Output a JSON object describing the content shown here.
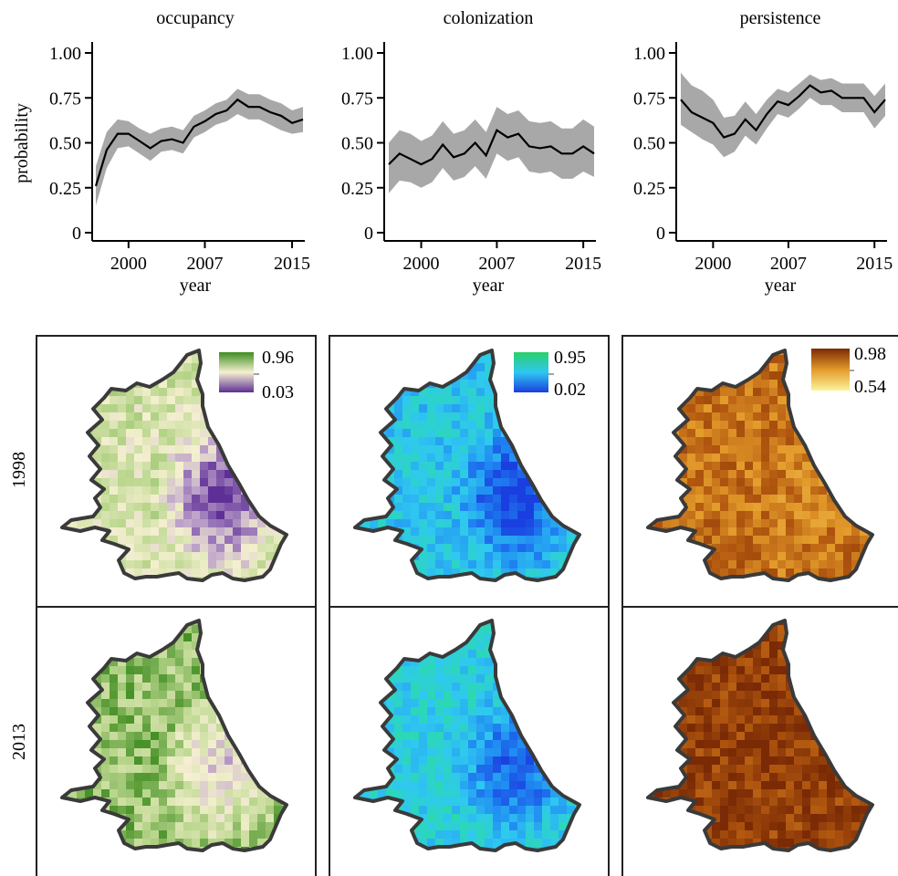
{
  "chart_data": [
    {
      "type": "line",
      "title": "occupancy",
      "xlabel": "year",
      "ylabel": "probability",
      "xlim": [
        1997,
        2016
      ],
      "ylim": [
        0,
        1
      ],
      "xticks": [
        2000,
        2007,
        2015
      ],
      "xtick_labels": [
        "2000",
        "2007",
        "2015"
      ],
      "yticks": [
        0,
        0.25,
        0.5,
        0.75,
        1.0
      ],
      "ytick_labels": [
        "0",
        "0.25",
        "0.50",
        "0.75",
        "1.00"
      ],
      "x": [
        1997,
        1998,
        1999,
        2000,
        2001,
        2002,
        2003,
        2004,
        2005,
        2006,
        2007,
        2008,
        2009,
        2010,
        2011,
        2012,
        2013,
        2014,
        2015,
        2016
      ],
      "series": [
        {
          "values": [
            0.26,
            0.46,
            0.55,
            0.55,
            0.51,
            0.47,
            0.51,
            0.52,
            0.5,
            0.59,
            0.62,
            0.66,
            0.68,
            0.74,
            0.7,
            0.7,
            0.67,
            0.65,
            0.61,
            0.63
          ],
          "lower": [
            0.15,
            0.36,
            0.47,
            0.48,
            0.44,
            0.4,
            0.45,
            0.46,
            0.44,
            0.53,
            0.56,
            0.6,
            0.62,
            0.66,
            0.63,
            0.63,
            0.6,
            0.57,
            0.55,
            0.56
          ],
          "upper": [
            0.37,
            0.56,
            0.63,
            0.62,
            0.58,
            0.55,
            0.58,
            0.59,
            0.57,
            0.65,
            0.68,
            0.72,
            0.74,
            0.8,
            0.77,
            0.77,
            0.74,
            0.72,
            0.68,
            0.7
          ]
        }
      ],
      "grid": false
    },
    {
      "type": "line",
      "title": "colonization",
      "xlabel": "year",
      "ylabel": "",
      "xlim": [
        1997,
        2016
      ],
      "ylim": [
        0,
        1
      ],
      "xticks": [
        2000,
        2007,
        2015
      ],
      "xtick_labels": [
        "2000",
        "2007",
        "2015"
      ],
      "yticks": [
        0,
        0.25,
        0.5,
        0.75,
        1.0
      ],
      "ytick_labels": [
        "0",
        "0.25",
        "0.50",
        "0.75",
        "1.00"
      ],
      "x": [
        1997,
        1998,
        1999,
        2000,
        2001,
        2002,
        2003,
        2004,
        2005,
        2006,
        2007,
        2008,
        2009,
        2010,
        2011,
        2012,
        2013,
        2014,
        2015,
        2016
      ],
      "series": [
        {
          "values": [
            0.38,
            0.44,
            0.41,
            0.38,
            0.41,
            0.49,
            0.42,
            0.44,
            0.5,
            0.43,
            0.57,
            0.53,
            0.55,
            0.48,
            0.47,
            0.48,
            0.44,
            0.44,
            0.48,
            0.44
          ],
          "lower": [
            0.22,
            0.29,
            0.28,
            0.25,
            0.28,
            0.36,
            0.29,
            0.31,
            0.37,
            0.3,
            0.44,
            0.4,
            0.42,
            0.34,
            0.33,
            0.34,
            0.3,
            0.3,
            0.34,
            0.31
          ],
          "upper": [
            0.5,
            0.57,
            0.55,
            0.51,
            0.54,
            0.62,
            0.55,
            0.57,
            0.63,
            0.56,
            0.7,
            0.66,
            0.68,
            0.62,
            0.61,
            0.62,
            0.58,
            0.58,
            0.63,
            0.59
          ]
        }
      ],
      "grid": false
    },
    {
      "type": "line",
      "title": "persistence",
      "xlabel": "year",
      "ylabel": "",
      "xlim": [
        1997,
        2016
      ],
      "ylim": [
        0,
        1
      ],
      "xticks": [
        2000,
        2007,
        2015
      ],
      "xtick_labels": [
        "2000",
        "2007",
        "2015"
      ],
      "yticks": [
        0,
        0.25,
        0.5,
        0.75,
        1.0
      ],
      "ytick_labels": [
        "0",
        "0.25",
        "0.50",
        "0.75",
        "1.00"
      ],
      "x": [
        1997,
        1998,
        1999,
        2000,
        2001,
        2002,
        2003,
        2004,
        2005,
        2006,
        2007,
        2008,
        2009,
        2010,
        2011,
        2012,
        2013,
        2014,
        2015,
        2016
      ],
      "series": [
        {
          "values": [
            0.74,
            0.67,
            0.64,
            0.61,
            0.53,
            0.55,
            0.63,
            0.57,
            0.66,
            0.73,
            0.71,
            0.76,
            0.82,
            0.78,
            0.79,
            0.75,
            0.75,
            0.75,
            0.67,
            0.74
          ],
          "lower": [
            0.6,
            0.56,
            0.52,
            0.49,
            0.42,
            0.45,
            0.54,
            0.49,
            0.58,
            0.66,
            0.64,
            0.69,
            0.75,
            0.71,
            0.71,
            0.67,
            0.67,
            0.67,
            0.58,
            0.65
          ],
          "upper": [
            0.89,
            0.82,
            0.79,
            0.74,
            0.64,
            0.65,
            0.73,
            0.66,
            0.74,
            0.8,
            0.78,
            0.83,
            0.88,
            0.85,
            0.86,
            0.83,
            0.83,
            0.83,
            0.76,
            0.83
          ]
        }
      ],
      "grid": false
    }
  ],
  "maps": {
    "row_labels": [
      "1998",
      "2013"
    ],
    "legends": [
      {
        "max_label": "0.96",
        "min_label": "0.03",
        "low_color": "#5e2f96",
        "mid_color": "#f5f0d0",
        "high_color": "#3f8c20"
      },
      {
        "max_label": "0.95",
        "min_label": "0.02",
        "low_color": "#1a3fe0",
        "mid_color": "#2fc8f0",
        "high_color": "#28d06a"
      },
      {
        "max_label": "0.98",
        "min_label": "0.54",
        "low_color": "#fbf39a",
        "mid_color": "#e39a2a",
        "high_color": "#7a2a05"
      }
    ]
  }
}
